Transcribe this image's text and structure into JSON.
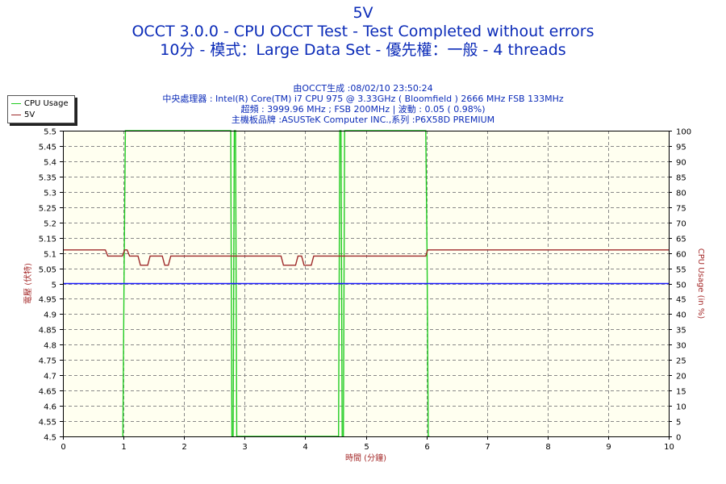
{
  "chart_data": {
    "type": "line",
    "title": "5V",
    "subtitle_lines": [
      "OCCT 3.0.0 - CPU OCCT Test - Test Completed without errors",
      "10分 - 模式：Large Data Set - 優先權：一般 - 4 threads"
    ],
    "info_lines": [
      "由OCCT生成 :08/02/10 23:50:24",
      "中央處理器 : Intel(R) Core(TM) i7 CPU 975 @ 3.33GHz ( Bloomfield ) 2666 MHz FSB 133MHz",
      "超頻 : 3999.96 MHz ; FSB 200MHz | 波動 : 0.05 ( 0.98%)",
      "主機板品牌 :ASUSTeK Computer INC.,系列 :P6X58D PREMIUM"
    ],
    "xlabel": "時間 (分鐘)",
    "ylabel_left": "電壓 (伏特)",
    "ylabel_right": "CPU Usage (in %)",
    "xlim": [
      0,
      10
    ],
    "ylim_left": [
      4.5,
      5.5
    ],
    "ylim_right": [
      0,
      100
    ],
    "x_ticks": [
      "0",
      "1",
      "2",
      "3",
      "4",
      "5",
      "6",
      "7",
      "8",
      "9",
      "10"
    ],
    "y_left_ticks": [
      "4.5",
      "4.55",
      "4.6",
      "4.65",
      "4.7",
      "4.75",
      "4.8",
      "4.85",
      "4.9",
      "4.95",
      "5",
      "5.05",
      "5.1",
      "5.15",
      "5.2",
      "5.25",
      "5.3",
      "5.35",
      "5.4",
      "5.45",
      "5.5"
    ],
    "y_right_ticks": [
      "0",
      "5",
      "10",
      "15",
      "20",
      "25",
      "30",
      "35",
      "40",
      "45",
      "50",
      "55",
      "60",
      "65",
      "70",
      "75",
      "80",
      "85",
      "90",
      "95",
      "100"
    ],
    "grid": true,
    "legend_position": "top-left",
    "series": [
      {
        "name": "CPU Usage",
        "axis": "right",
        "color": "#22cc22",
        "x": [
          0.99,
          1.01,
          1.03,
          1.05,
          2.77,
          2.79,
          2.81,
          2.83,
          2.85,
          2.87,
          2.89,
          4.55,
          4.57,
          4.59,
          4.61,
          4.63,
          4.65,
          4.67,
          5.99,
          6.01,
          6.03,
          6.05
        ],
        "values": [
          0,
          55,
          100,
          100,
          100,
          0,
          0,
          100,
          100,
          0,
          0,
          0,
          100,
          100,
          0,
          0,
          100,
          100,
          100,
          60,
          0,
          0
        ]
      },
      {
        "name": "5V",
        "axis": "left",
        "color": "#9e2a2a",
        "x": [
          0,
          0.7,
          0.74,
          0.98,
          1.02,
          1.06,
          1.1,
          1.24,
          1.28,
          1.4,
          1.44,
          1.64,
          1.68,
          1.74,
          1.78,
          3.6,
          3.64,
          3.84,
          3.88,
          3.94,
          3.98,
          4.1,
          4.14,
          5.99,
          6.02,
          10
        ],
        "values": [
          5.11,
          5.11,
          5.09,
          5.09,
          5.11,
          5.11,
          5.09,
          5.09,
          5.06,
          5.06,
          5.09,
          5.09,
          5.06,
          5.06,
          5.09,
          5.09,
          5.06,
          5.06,
          5.09,
          5.09,
          5.06,
          5.06,
          5.09,
          5.09,
          5.11,
          5.11
        ]
      },
      {
        "name": "",
        "axis": "left",
        "color": "#1a1aff",
        "x": [
          0,
          10
        ],
        "values": [
          5.0,
          5.0
        ]
      }
    ]
  }
}
